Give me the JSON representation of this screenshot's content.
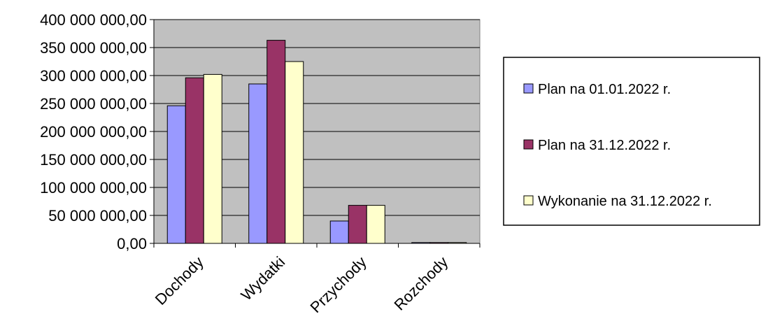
{
  "chart_data": {
    "type": "bar",
    "title": "",
    "xlabel": "",
    "ylabel": "",
    "categories": [
      "Dochody",
      "Wydatki",
      "Przychody",
      "Rozchody"
    ],
    "ylim": [
      0,
      400000000
    ],
    "y_ticks": [
      0,
      50000000,
      100000000,
      150000000,
      200000000,
      250000000,
      300000000,
      350000000,
      400000000
    ],
    "y_tick_labels": [
      "0,00",
      "50 000 000,00",
      "100 000 000,00",
      "150 000 000,00",
      "200 000 000,00",
      "250 000 000,00",
      "300 000 000,00",
      "350 000 000,00",
      "400 000 000,00"
    ],
    "grid": true,
    "legend_position": "right",
    "plot_background": "#c0c0c0",
    "series": [
      {
        "name": "Plan na 01.01.2022 r.",
        "color": "#9999ff",
        "values": [
          246000000,
          285000000,
          40000000,
          1500000
        ]
      },
      {
        "name": "Plan na 31.12.2022 r.",
        "color": "#993366",
        "values": [
          296000000,
          363000000,
          68000000,
          1500000
        ]
      },
      {
        "name": "Wykonanie na 31.12.2022 r.",
        "color": "#ffffcc",
        "values": [
          302000000,
          325000000,
          68000000,
          1500000
        ]
      }
    ]
  }
}
